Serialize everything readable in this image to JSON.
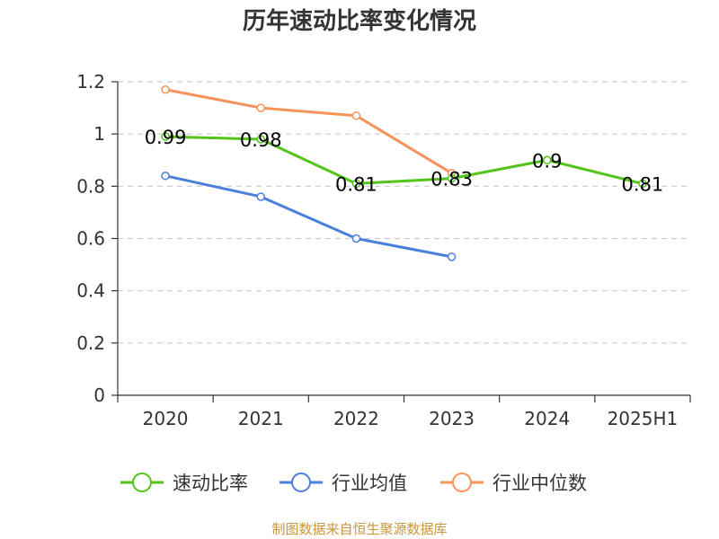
{
  "chart_data": {
    "type": "line",
    "title": "历年速动比率变化情况",
    "categories": [
      "2020",
      "2021",
      "2022",
      "2023",
      "2024",
      "2025H1"
    ],
    "ylim": [
      0,
      1.2
    ],
    "yticks": [
      "0",
      "0.2",
      "0.4",
      "0.6",
      "0.8",
      "1",
      "1.2"
    ],
    "grid": true,
    "legend_position": "bottom",
    "series": [
      {
        "name": "速动比率",
        "color": "#52c41a",
        "values": [
          0.99,
          0.98,
          0.81,
          0.83,
          0.9,
          0.81
        ],
        "labels": [
          "0.99",
          "0.98",
          "0.81",
          "0.83",
          "0.9",
          "0.81"
        ]
      },
      {
        "name": "行业均值",
        "color": "#4a7fdc",
        "values": [
          0.84,
          0.76,
          0.6,
          0.53,
          null,
          null
        ]
      },
      {
        "name": "行业中位数",
        "color": "#f7935a",
        "values": [
          1.17,
          1.1,
          1.07,
          0.85,
          null,
          null
        ]
      }
    ],
    "source": "制图数据来自恒生聚源数据库"
  }
}
